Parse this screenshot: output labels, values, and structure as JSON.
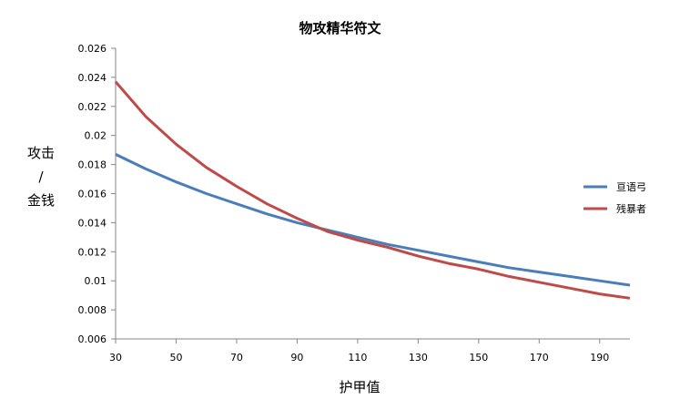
{
  "chart_data": {
    "type": "line",
    "title": "物攻精华符文",
    "ylabel_lines": [
      "攻击",
      "/",
      "金钱"
    ],
    "xlabel": "护甲值",
    "xlim": [
      30,
      200
    ],
    "ylim": [
      0.006,
      0.026
    ],
    "x_ticks": [
      "30",
      "50",
      "70",
      "90",
      "110",
      "130",
      "150",
      "170",
      "190"
    ],
    "y_ticks": [
      "0.006",
      "0.008",
      "0.01",
      "0.012",
      "0.014",
      "0.016",
      "0.018",
      "0.02",
      "0.022",
      "0.024",
      "0.026"
    ],
    "grid": false,
    "legend_position": "right",
    "x": [
      30,
      40,
      50,
      60,
      70,
      80,
      90,
      100,
      110,
      120,
      130,
      140,
      150,
      160,
      170,
      180,
      190,
      200
    ],
    "series": [
      {
        "name": "亘语弓",
        "color": "#4a7ebb",
        "values": [
          0.0187,
          0.0177,
          0.0168,
          0.016,
          0.0153,
          0.0146,
          0.014,
          0.0135,
          0.013,
          0.0125,
          0.0121,
          0.0117,
          0.0113,
          0.0109,
          0.0106,
          0.0103,
          0.01,
          0.0097
        ]
      },
      {
        "name": "残暴者",
        "color": "#be4b48",
        "values": [
          0.0237,
          0.0213,
          0.0194,
          0.0178,
          0.0165,
          0.0153,
          0.0143,
          0.0134,
          0.0128,
          0.0123,
          0.0117,
          0.0112,
          0.0108,
          0.0103,
          0.0099,
          0.0095,
          0.0091,
          0.0088
        ]
      }
    ]
  }
}
